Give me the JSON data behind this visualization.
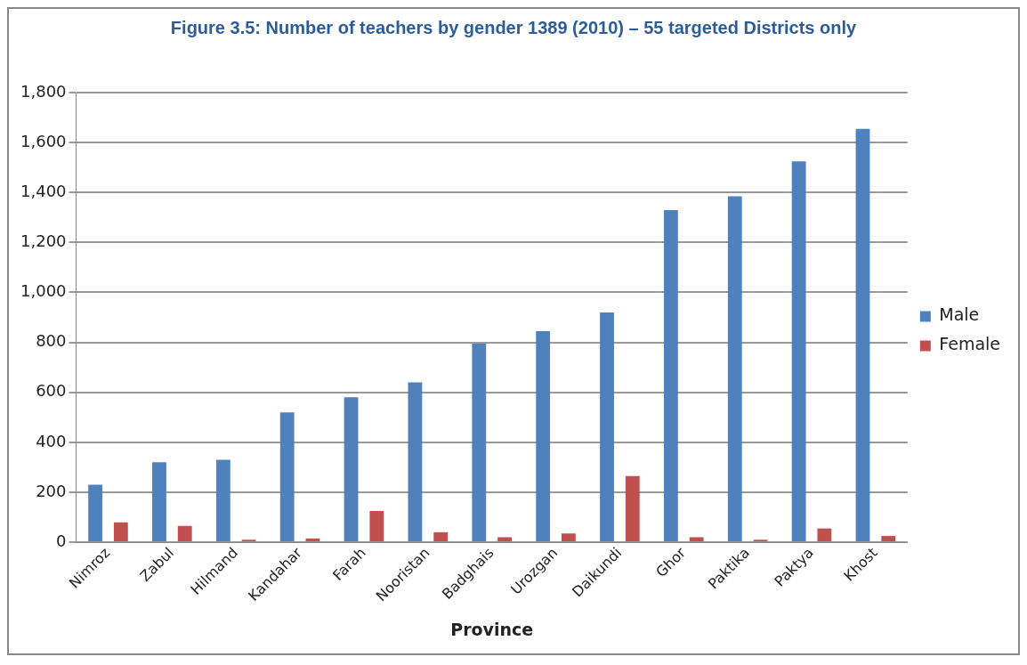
{
  "chart_data": {
    "type": "bar",
    "title": "Figure 3.5: Number of teachers by gender 1389 (2010) – 55 targeted Districts only",
    "xlabel": "Province",
    "categories": [
      "Nimroz",
      "Zabul",
      "Hilmand",
      "Kandahar",
      "Farah",
      "Nooristan",
      "Badghais",
      "Urozgan",
      "Daikundi",
      "Ghor",
      "Paktika",
      "Paktya",
      "Khost"
    ],
    "series": [
      {
        "name": "Male",
        "color": "#4f81bd",
        "values": [
          230,
          320,
          330,
          520,
          580,
          640,
          795,
          845,
          920,
          1330,
          1385,
          1525,
          1655
        ]
      },
      {
        "name": "Female",
        "color": "#c0504d",
        "values": [
          80,
          65,
          10,
          15,
          125,
          40,
          20,
          35,
          265,
          20,
          10,
          55,
          25
        ]
      }
    ],
    "ylim": [
      0,
      1800
    ],
    "yticks": [
      {
        "value": 0,
        "label": "0"
      },
      {
        "value": 200,
        "label": "200"
      },
      {
        "value": 400,
        "label": "400"
      },
      {
        "value": 600,
        "label": "600"
      },
      {
        "value": 800,
        "label": "800"
      },
      {
        "value": 1000,
        "label": "1,000"
      },
      {
        "value": 1200,
        "label": "1,200"
      },
      {
        "value": 1400,
        "label": "1,400"
      },
      {
        "value": 1600,
        "label": "1,600"
      },
      {
        "value": 1800,
        "label": "1,800"
      }
    ],
    "grid": "y",
    "legend": "right"
  }
}
